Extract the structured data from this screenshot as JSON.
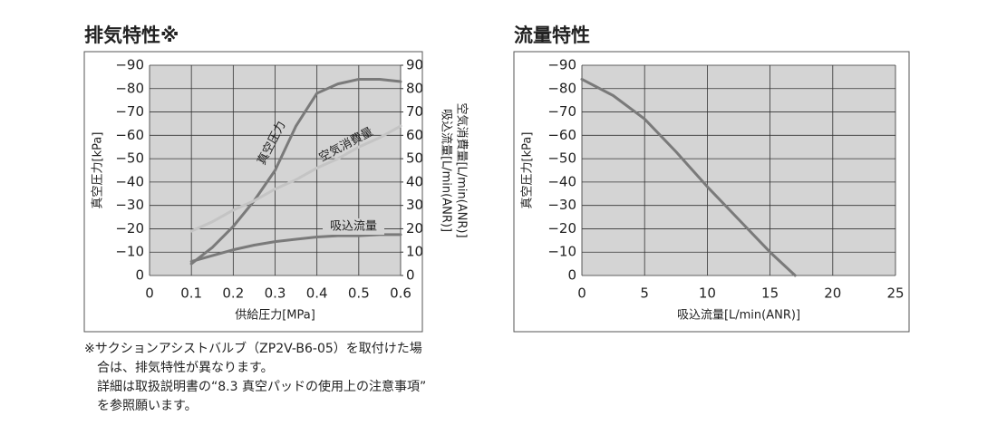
{
  "chart_data": [
    {
      "type": "line",
      "title": "排気特性※",
      "x_label": "供給圧力[MPa]",
      "y_label": "真空圧力[kPa]",
      "y2_label": [
        "吸込流量[L/min(ANR)]",
        "空気消費量[L/min(ANR)]"
      ],
      "x": [
        0.1,
        0.15,
        0.2,
        0.25,
        0.3,
        0.35,
        0.4,
        0.45,
        0.5,
        0.55,
        0.6
      ],
      "xlim": [
        0,
        0.6
      ],
      "xticks": [
        0,
        0.1,
        0.2,
        0.3,
        0.4,
        0.5,
        0.6
      ],
      "ylim": [
        0,
        -90
      ],
      "yticks": [
        {
          "value": -90,
          "label": "−90"
        },
        {
          "value": -80,
          "label": "−80"
        },
        {
          "value": -70,
          "label": "−70"
        },
        {
          "value": -60,
          "label": "−60"
        },
        {
          "value": -50,
          "label": "−50"
        },
        {
          "value": -40,
          "label": "−40"
        },
        {
          "value": -30,
          "label": "−30"
        },
        {
          "value": -20,
          "label": "−20"
        },
        {
          "value": -10,
          "label": "−10"
        },
        0
      ],
      "y2lim": [
        0,
        90
      ],
      "y2ticks": [
        0,
        10,
        20,
        30,
        40,
        50,
        60,
        70,
        80,
        90
      ],
      "grid": true,
      "series": [
        {
          "name": "真空圧力",
          "color": "#7a7a7a",
          "values": [
            -5,
            -12,
            -21,
            -32,
            -45,
            -64,
            -78,
            -82,
            -84,
            -84,
            -83
          ]
        },
        {
          "name": "空気消費量",
          "color": "#c4c4c4",
          "axis": "y2",
          "values": [
            19,
            23,
            28,
            32,
            37,
            41,
            46,
            50,
            55,
            59,
            64
          ]
        },
        {
          "name": "吸込流量",
          "color": "#7a7a7a",
          "axis": "y2",
          "values": [
            6,
            8.5,
            11,
            13,
            14.5,
            15.5,
            16.5,
            17,
            17,
            17.5,
            17.5
          ]
        }
      ]
    },
    {
      "type": "line",
      "title": "流量特性",
      "x_label": "吸込流量[L/min(ANR)]",
      "y_label": "真空圧力[kPa]",
      "x": [
        0,
        2.5,
        5,
        7.5,
        10,
        12.5,
        15,
        17
      ],
      "values": [
        -84,
        -77,
        -67,
        -53,
        -38,
        -24,
        -10,
        0
      ],
      "color": "#7a7a7a",
      "xlim": [
        0,
        25
      ],
      "xticks": [
        0,
        5,
        10,
        15,
        20,
        25
      ],
      "ylim": [
        0,
        -90
      ],
      "yticks": [
        {
          "value": -90,
          "label": "−90"
        },
        {
          "value": -80,
          "label": "−80"
        },
        {
          "value": -70,
          "label": "−70"
        },
        {
          "value": -60,
          "label": "−60"
        },
        {
          "value": -50,
          "label": "−50"
        },
        {
          "value": -40,
          "label": "−40"
        },
        {
          "value": -30,
          "label": "−30"
        },
        {
          "value": -20,
          "label": "−20"
        },
        {
          "value": -10,
          "label": "−10"
        },
        0
      ],
      "grid": true
    }
  ],
  "footnote": [
    "※サクションアシストバルブ（ZP2V-B6-05）を取付けた場",
    "合は、排気特性が異なります。",
    "詳細は取扱説明書の“8.3 真空パッドの使用上の注意事項”",
    "を参照願います。"
  ]
}
